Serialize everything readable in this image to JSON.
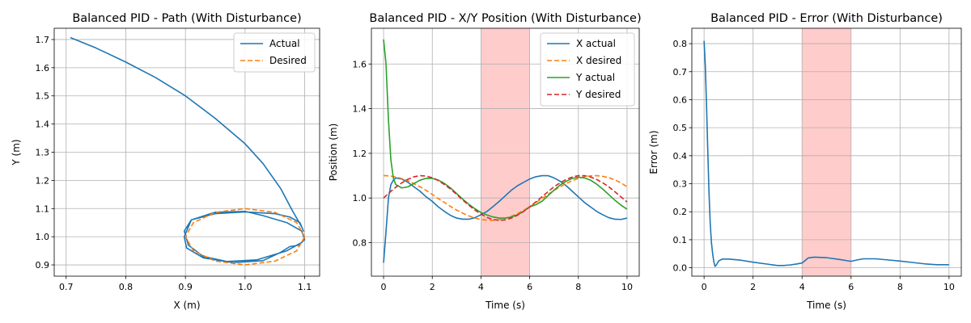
{
  "chart_data": [
    {
      "type": "line",
      "title": "Balanced PID - Path (With Disturbance)",
      "xlabel": "X (m)",
      "ylabel": "Y (m)",
      "xlim": [
        0.68,
        1.125
      ],
      "ylim": [
        0.86,
        1.74
      ],
      "xticks": [
        "0.7",
        "0.8",
        "0.9",
        "1.0",
        "1.1"
      ],
      "yticks": [
        "0.9",
        "1.0",
        "1.1",
        "1.2",
        "1.3",
        "1.4",
        "1.5",
        "1.6",
        "1.7"
      ],
      "grid": true,
      "legend_position": "upper-right",
      "series": [
        {
          "name": "Actual",
          "color": "#1f77b4",
          "style": "solid",
          "x": [
            0.707,
            0.75,
            0.8,
            0.85,
            0.9,
            0.95,
            1.0,
            1.03,
            1.06,
            1.08,
            1.095,
            1.098,
            1.092,
            1.075,
            1.05,
            1.0,
            0.95,
            0.91,
            0.898,
            0.902,
            0.93,
            0.98,
            1.03,
            1.06,
            1.075,
            1.09,
            1.1,
            1.095,
            1.07,
            1.03,
            1.0,
            0.95,
            0.91,
            0.898,
            0.905,
            0.93,
            0.97,
            1.02,
            1.07,
            1.095
          ],
          "y": [
            1.707,
            1.67,
            1.62,
            1.565,
            1.5,
            1.42,
            1.33,
            1.26,
            1.17,
            1.09,
            1.035,
            1.02,
            1.05,
            1.07,
            1.082,
            1.088,
            1.082,
            1.06,
            1.0,
            0.96,
            0.925,
            0.908,
            0.915,
            0.945,
            0.965,
            0.97,
            0.99,
            1.02,
            1.05,
            1.075,
            1.09,
            1.087,
            1.06,
            1.02,
            0.97,
            0.93,
            0.912,
            0.918,
            0.95,
            0.98
          ]
        },
        {
          "name": "Desired",
          "color": "#ff7f0e",
          "style": "dashed",
          "x": [
            1.1,
            1.0866,
            1.05,
            1.0,
            0.95,
            0.9134,
            0.9,
            0.9134,
            0.95,
            1.0,
            1.05,
            1.0866,
            1.1
          ],
          "y": [
            1.0,
            1.05,
            1.0866,
            1.1,
            1.0866,
            1.05,
            1.0,
            0.95,
            0.9134,
            0.9,
            0.9134,
            0.95,
            1.0
          ]
        }
      ]
    },
    {
      "type": "line",
      "title": "Balanced PID - X/Y Position (With Disturbance)",
      "xlabel": "Time (s)",
      "ylabel": "Position (m)",
      "xlim": [
        -0.5,
        10.5
      ],
      "ylim": [
        0.65,
        1.76
      ],
      "xticks": [
        "0",
        "2",
        "4",
        "6",
        "8",
        "10"
      ],
      "yticks": [
        "0.8",
        "1.0",
        "1.2",
        "1.4",
        "1.6"
      ],
      "grid": true,
      "legend_position": "upper-right",
      "shaded_interval": [
        4,
        6
      ],
      "shaded_color": "#ffcccc",
      "x": [
        0,
        0.1,
        0.2,
        0.3,
        0.4,
        0.5,
        0.75,
        1.0,
        1.25,
        1.5,
        1.75,
        2.0,
        2.25,
        2.5,
        2.75,
        3.0,
        3.25,
        3.5,
        3.75,
        4.0,
        4.25,
        4.5,
        4.75,
        5.0,
        5.25,
        5.5,
        5.75,
        6.0,
        6.25,
        6.5,
        6.75,
        7.0,
        7.25,
        7.5,
        7.75,
        8.0,
        8.25,
        8.5,
        8.75,
        9.0,
        9.25,
        9.5,
        9.75,
        10.0
      ],
      "series": [
        {
          "name": "X actual",
          "color": "#1f77b4",
          "style": "solid",
          "values": [
            0.71,
            0.85,
            1.0,
            1.06,
            1.08,
            1.09,
            1.085,
            1.07,
            1.05,
            1.03,
            1.005,
            0.985,
            0.96,
            0.94,
            0.922,
            0.91,
            0.905,
            0.905,
            0.912,
            0.925,
            0.94,
            0.962,
            0.985,
            1.01,
            1.035,
            1.055,
            1.07,
            1.085,
            1.095,
            1.1,
            1.1,
            1.09,
            1.075,
            1.055,
            1.03,
            1.005,
            0.98,
            0.96,
            0.94,
            0.925,
            0.912,
            0.905,
            0.904,
            0.91
          ]
        },
        {
          "name": "X desired",
          "color": "#ff7f0e",
          "style": "dashed",
          "values": [
            1.1,
            1.1,
            1.099,
            1.098,
            1.096,
            1.094,
            1.087,
            1.077,
            1.064,
            1.05,
            1.034,
            1.016,
            0.997,
            0.98,
            0.962,
            0.946,
            0.932,
            0.92,
            0.91,
            0.904,
            0.901,
            0.9,
            0.903,
            0.909,
            0.918,
            0.93,
            0.945,
            0.961,
            0.979,
            0.997,
            1.016,
            1.034,
            1.05,
            1.065,
            1.078,
            1.088,
            1.095,
            1.099,
            1.1,
            1.097,
            1.091,
            1.081,
            1.068,
            1.05
          ]
        },
        {
          "name": "Y actual",
          "color": "#2ca02c",
          "style": "solid",
          "values": [
            1.71,
            1.6,
            1.35,
            1.17,
            1.09,
            1.06,
            1.045,
            1.05,
            1.065,
            1.08,
            1.088,
            1.088,
            1.08,
            1.065,
            1.045,
            1.02,
            0.995,
            0.972,
            0.952,
            0.935,
            0.924,
            0.915,
            0.91,
            0.91,
            0.915,
            0.925,
            0.94,
            0.96,
            0.97,
            0.985,
            1.01,
            1.035,
            1.058,
            1.075,
            1.088,
            1.093,
            1.09,
            1.08,
            1.062,
            1.04,
            1.015,
            0.99,
            0.968,
            0.95
          ]
        },
        {
          "name": "Y desired",
          "color": "#d62728",
          "style": "dashed",
          "values": [
            1.0,
            1.01,
            1.02,
            1.03,
            1.039,
            1.048,
            1.068,
            1.084,
            1.095,
            1.1,
            1.098,
            1.091,
            1.078,
            1.06,
            1.04,
            1.016,
            0.991,
            0.968,
            0.946,
            0.928,
            0.913,
            0.903,
            0.9,
            0.902,
            0.91,
            0.923,
            0.94,
            0.96,
            0.982,
            1.005,
            1.028,
            1.05,
            1.068,
            1.083,
            1.094,
            1.1,
            1.1,
            1.094,
            1.083,
            1.068,
            1.05,
            1.028,
            1.005,
            0.982
          ]
        }
      ]
    },
    {
      "type": "line",
      "title": "Balanced PID - Error (With Disturbance)",
      "xlabel": "Time (s)",
      "ylabel": "Error (m)",
      "xlim": [
        -0.5,
        10.5
      ],
      "ylim": [
        -0.03,
        0.855
      ],
      "xticks": [
        "0",
        "2",
        "4",
        "6",
        "8",
        "10"
      ],
      "yticks": [
        "0.0",
        "0.1",
        "0.2",
        "0.3",
        "0.4",
        "0.5",
        "0.6",
        "0.7",
        "0.8"
      ],
      "grid": true,
      "shaded_interval": [
        4,
        6
      ],
      "shaded_color": "#ffcccc",
      "series": [
        {
          "name": "",
          "color": "#1f77b4",
          "style": "solid",
          "x": [
            0,
            0.05,
            0.1,
            0.15,
            0.2,
            0.25,
            0.3,
            0.35,
            0.4,
            0.45,
            0.5,
            0.6,
            0.75,
            1.0,
            1.5,
            2.0,
            2.5,
            3.0,
            3.25,
            3.5,
            3.75,
            4.0,
            4.25,
            4.5,
            5.0,
            5.5,
            6.0,
            6.25,
            6.5,
            7.0,
            7.5,
            8.0,
            8.5,
            9.0,
            9.5,
            10.0
          ],
          "values": [
            0.81,
            0.72,
            0.58,
            0.42,
            0.27,
            0.16,
            0.09,
            0.05,
            0.02,
            0.005,
            0.01,
            0.025,
            0.031,
            0.031,
            0.027,
            0.02,
            0.014,
            0.008,
            0.008,
            0.01,
            0.013,
            0.017,
            0.035,
            0.038,
            0.036,
            0.03,
            0.023,
            0.028,
            0.032,
            0.032,
            0.028,
            0.024,
            0.019,
            0.014,
            0.011,
            0.011
          ]
        }
      ]
    }
  ]
}
